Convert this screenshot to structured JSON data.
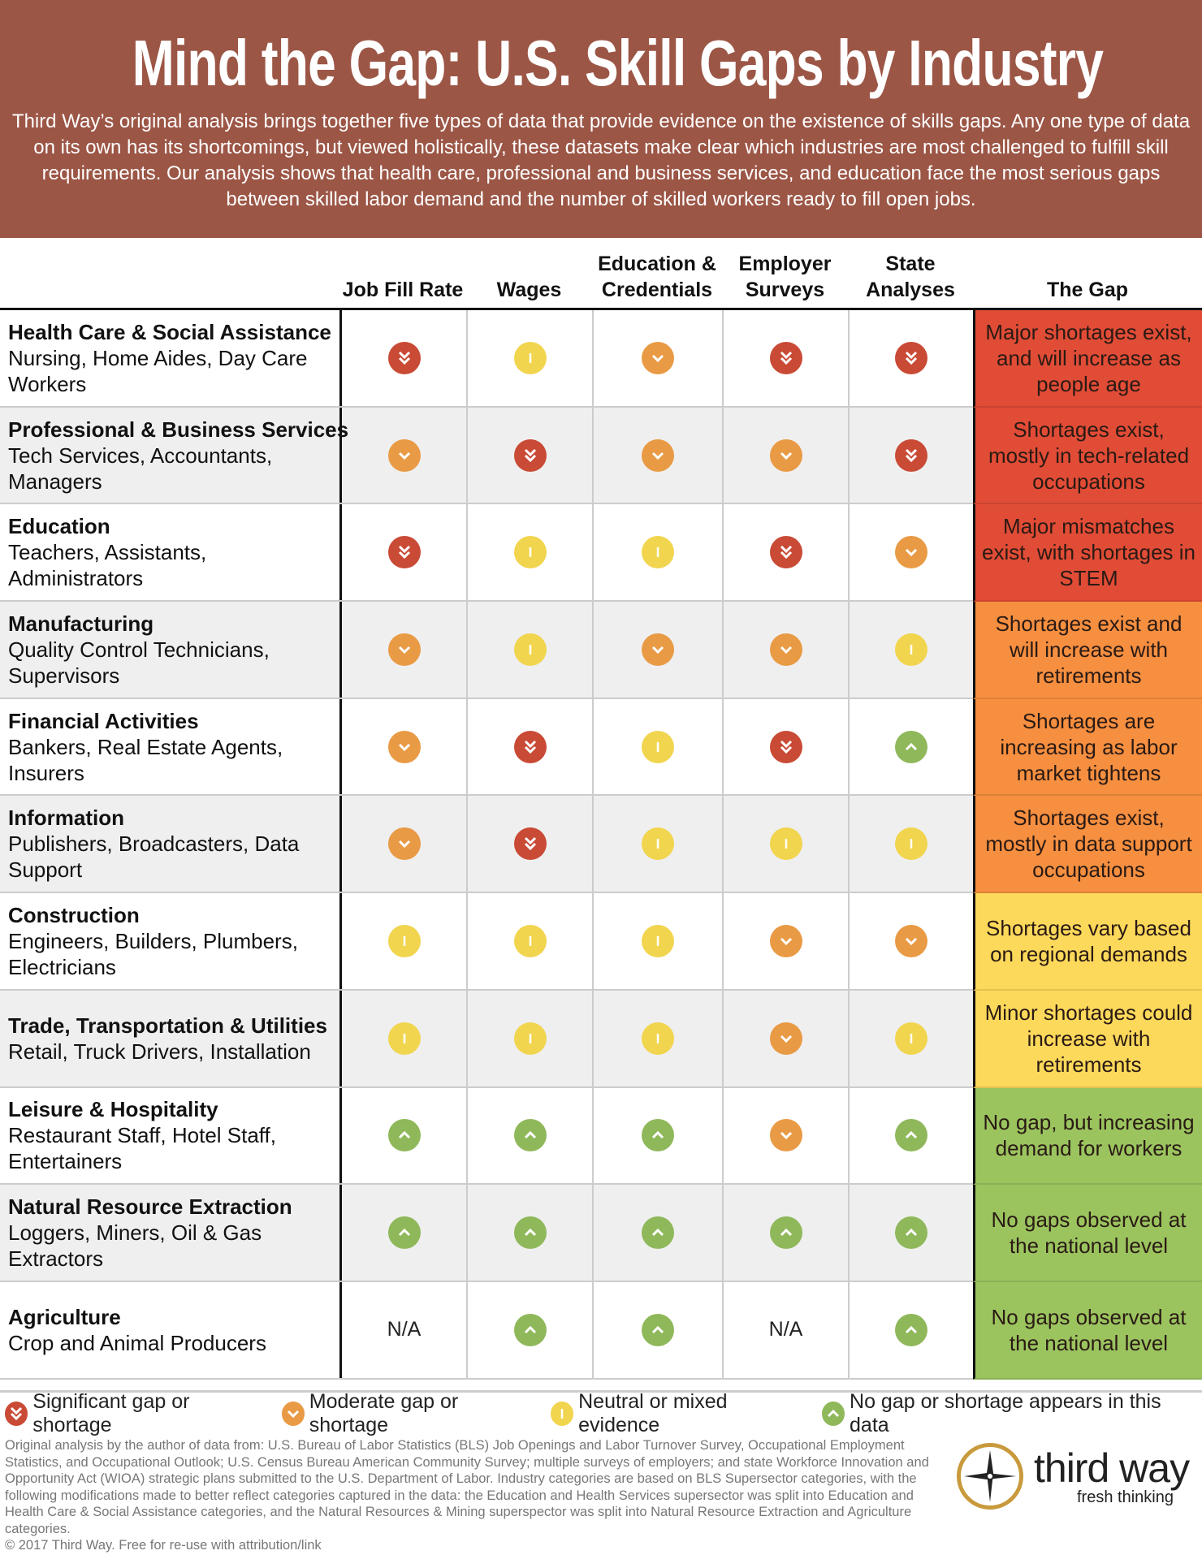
{
  "header": {
    "title": "Mind the Gap: U.S. Skill Gaps by Industry",
    "description": "Third Way’s original analysis brings together five types of data that provide evidence on the existence of skills gaps. Any one type of data on its own has its shortcomings, but viewed holistically, these datasets make clear which industries are most challenged to fulfill skill requirements. Our analysis shows that health care, professional and business services, and education face the most serious gaps between skilled labor demand and the number of skilled workers ready to fill open jobs."
  },
  "colors": {
    "header_bg": "#9c5646",
    "significant": "#c94a35",
    "moderate": "#e99a44",
    "neutral": "#f1d54f",
    "none": "#8fb85a",
    "gap_red": "#e14c36",
    "gap_orange": "#f68f40",
    "gap_yellow": "#fdd95b",
    "gap_green": "#9bc45f"
  },
  "columns": [
    "Job Fill Rate",
    "Wages",
    "Education & Credentials",
    "Employer Surveys",
    "State Analyses",
    "The Gap"
  ],
  "rows": [
    {
      "industry": "Health Care & Social Assistance",
      "occupations": "Nursing, Home Aides, Day Care Workers",
      "ratings": [
        "significant",
        "neutral",
        "moderate",
        "significant",
        "significant"
      ],
      "gap": "Major shortages exist, and will increase as people age",
      "gap_color": "gap_red"
    },
    {
      "industry": "Professional & Business Services",
      "occupations": "Tech Services, Accountants, Managers",
      "ratings": [
        "moderate",
        "significant",
        "moderate",
        "moderate",
        "significant"
      ],
      "gap": "Shortages exist, mostly in tech-related occupations",
      "gap_color": "gap_red"
    },
    {
      "industry": "Education",
      "occupations": "Teachers, Assistants, Administrators",
      "ratings": [
        "significant",
        "neutral",
        "neutral",
        "significant",
        "moderate"
      ],
      "gap": "Major mismatches exist, with shortages in STEM",
      "gap_color": "gap_red"
    },
    {
      "industry": "Manufacturing",
      "occupations": "Quality Control Technicians, Supervisors",
      "ratings": [
        "moderate",
        "neutral",
        "moderate",
        "moderate",
        "neutral"
      ],
      "gap": "Shortages exist and will increase with retirements",
      "gap_color": "gap_orange"
    },
    {
      "industry": "Financial Activities",
      "occupations": "Bankers, Real Estate Agents, Insurers",
      "ratings": [
        "moderate",
        "significant",
        "neutral",
        "significant",
        "none"
      ],
      "gap": "Shortages are increasing as labor market tightens",
      "gap_color": "gap_orange"
    },
    {
      "industry": "Information",
      "occupations": "Publishers, Broadcasters, Data Support",
      "ratings": [
        "moderate",
        "significant",
        "neutral",
        "neutral",
        "neutral"
      ],
      "gap": "Shortages exist, mostly in data support occupations",
      "gap_color": "gap_orange"
    },
    {
      "industry": "Construction",
      "occupations": "Engineers, Builders, Plumbers, Electricians",
      "ratings": [
        "neutral",
        "neutral",
        "neutral",
        "moderate",
        "moderate"
      ],
      "gap": "Shortages vary based on regional demands",
      "gap_color": "gap_yellow"
    },
    {
      "industry": "Trade, Transportation & Utilities",
      "occupations": "Retail, Truck Drivers, Installation",
      "ratings": [
        "neutral",
        "neutral",
        "neutral",
        "moderate",
        "neutral"
      ],
      "gap": "Minor shortages could increase with retirements",
      "gap_color": "gap_yellow"
    },
    {
      "industry": "Leisure & Hospitality",
      "occupations": "Restaurant Staff, Hotel Staff, Entertainers",
      "ratings": [
        "none",
        "none",
        "none",
        "moderate",
        "none"
      ],
      "gap": "No gap, but increasing demand for workers",
      "gap_color": "gap_green"
    },
    {
      "industry": "Natural Resource Extraction",
      "occupations": "Loggers, Miners, Oil & Gas Extractors",
      "ratings": [
        "none",
        "none",
        "none",
        "none",
        "none"
      ],
      "gap": "No gaps observed at the national level",
      "gap_color": "gap_green"
    },
    {
      "industry": "Agriculture",
      "occupations": "Crop and Animal Producers",
      "ratings": [
        "N/A",
        "none",
        "none",
        "N/A",
        "none"
      ],
      "gap": "No gaps observed at the national level",
      "gap_color": "gap_green"
    }
  ],
  "legend": [
    {
      "key": "significant",
      "label": "Significant gap or shortage"
    },
    {
      "key": "moderate",
      "label": "Moderate gap or shortage"
    },
    {
      "key": "neutral",
      "label": "Neutral or mixed evidence"
    },
    {
      "key": "none",
      "label": "No gap or shortage appears in this data"
    }
  ],
  "footer": {
    "sources": "Original analysis by the author of data from: U.S. Bureau of Labor Statistics (BLS) Job Openings and Labor Turnover Survey, Occupational Employment Statistics, and Occupational Outlook; U.S. Census Bureau American Community Survey; multiple surveys of employers; and state Workforce Innovation and Opportunity Act (WIOA) strategic plans submitted to the U.S. Department of Labor. Industry categories are based on BLS Supersector categories, with the following modifications made to better reflect categories captured in the data: the Education and Health Services supersector was split into Education and Health Care & Social Assistance categories, and the Natural Resources & Mining superspector was split into Natural Resource Extraction and Agriculture categories.",
    "copyright": "© 2017 Third Way. Free for re-use with attribution/link"
  },
  "logo": {
    "name": "third way",
    "tagline": "fresh thinking"
  }
}
